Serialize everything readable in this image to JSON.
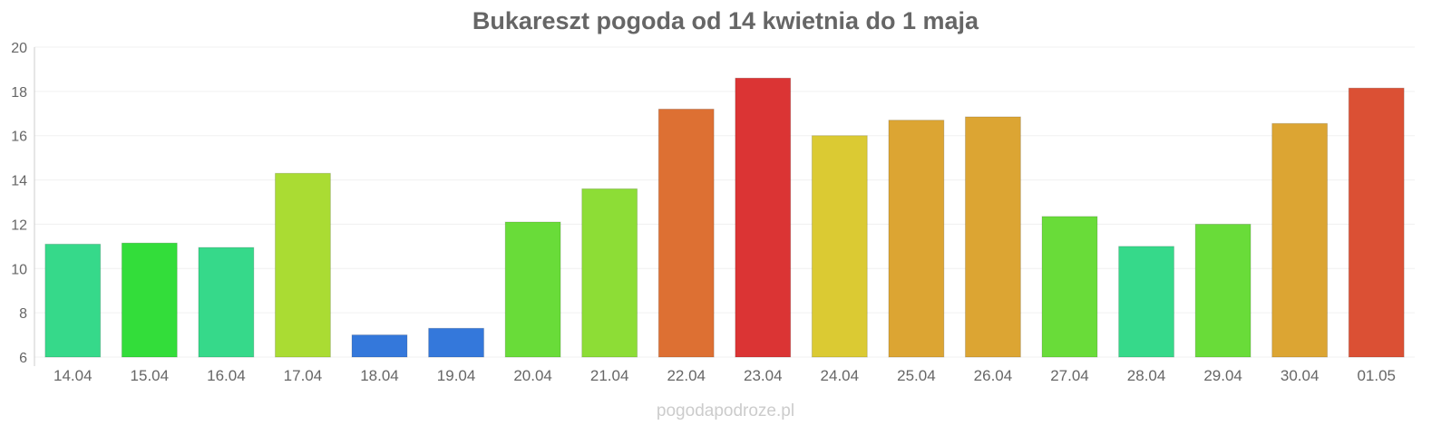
{
  "chart_data": {
    "type": "bar",
    "title": "Bukareszt pogoda od 14 kwietnia do 1 maja",
    "xlabel": "",
    "ylabel": "",
    "ylim": [
      6,
      20
    ],
    "yticks": [
      6,
      8,
      10,
      12,
      14,
      16,
      18,
      20
    ],
    "grid": true,
    "categories": [
      "14.04",
      "15.04",
      "16.04",
      "17.04",
      "18.04",
      "19.04",
      "20.04",
      "21.04",
      "22.04",
      "23.04",
      "24.04",
      "25.04",
      "26.04",
      "27.04",
      "28.04",
      "29.04",
      "30.04",
      "01.05"
    ],
    "values": [
      11.1,
      11.15,
      10.95,
      14.3,
      7.0,
      7.3,
      12.1,
      13.6,
      17.2,
      18.6,
      16.0,
      16.7,
      16.85,
      12.35,
      11.0,
      12.0,
      16.55,
      18.15
    ],
    "colors": [
      "#36d98a",
      "#33dd3a",
      "#36d98a",
      "#aadc33",
      "#3478db",
      "#3478db",
      "#69dc39",
      "#8ddd36",
      "#dd7033",
      "#db3434",
      "#dbca33",
      "#dca533",
      "#dca533",
      "#69dc39",
      "#36d98a",
      "#69dc39",
      "#dca533",
      "#db5034"
    ]
  },
  "watermark": "pogodapodroze.pl"
}
